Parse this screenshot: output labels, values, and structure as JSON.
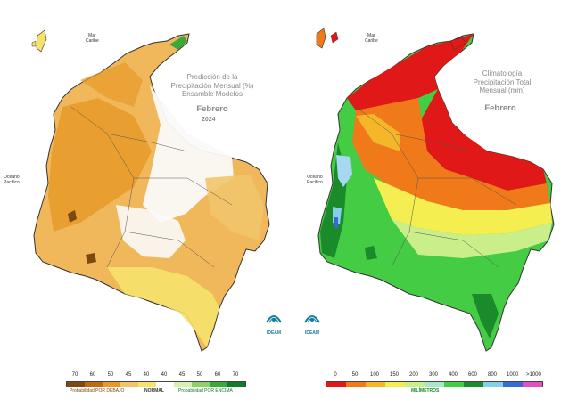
{
  "left_map": {
    "title_lines": [
      "Predicción de la",
      "Precipitación Mensual (%)",
      "Ensamble Modelos"
    ],
    "month": "Febrero",
    "year": "2024",
    "sea_label": [
      "Mar",
      "Caribe"
    ],
    "ocean_label": [
      "Océano",
      "Pacífico"
    ],
    "logo_text": "IDEAM",
    "legend": {
      "ticks": [
        "70",
        "60",
        "50",
        "45",
        "40",
        "40",
        "45",
        "50",
        "60",
        "70"
      ],
      "colors": [
        "#7a4a12",
        "#c06a10",
        "#e89a28",
        "#f2c56a",
        "#f5e26a",
        "#ffffff",
        "#d9efb0",
        "#8fd06a",
        "#3aa83a",
        "#127a2a"
      ],
      "caption_below": "Probabilidad POR DEBAJO",
      "caption_normal": "NORMAL",
      "caption_above": "Probabilidad POR ENCIMA"
    }
  },
  "right_map": {
    "title_lines": [
      "Climatología",
      "Precipitación Total",
      "Mensual (mm)"
    ],
    "month": "Febrero",
    "sea_label": [
      "Mar",
      "Caribe"
    ],
    "ocean_label": [
      "Océano",
      "Pacífico"
    ],
    "logo_text": "IDEAM",
    "legend": {
      "ticks": [
        "0",
        "50",
        "100",
        "150",
        "200",
        "300",
        "400",
        "600",
        "800",
        "1000",
        ">1000"
      ],
      "colors": [
        "#e01818",
        "#f07a1a",
        "#f5b62a",
        "#f5ee50",
        "#c9ee8a",
        "#a8e8c8",
        "#44cc44",
        "#1a8a2a",
        "#87ceeb",
        "#3a6ad0",
        "#e050c0"
      ],
      "caption": "MILÍMETROS"
    }
  }
}
